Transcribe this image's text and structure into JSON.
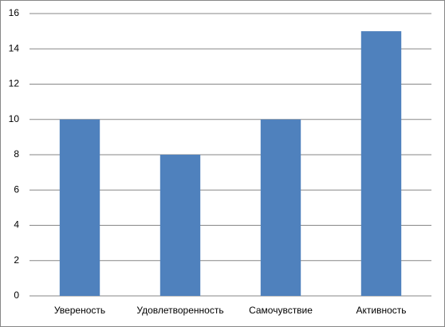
{
  "chart_data": {
    "type": "bar",
    "categories": [
      "Увереность",
      "Удовлетворенность",
      "Самочувствие",
      "Активность"
    ],
    "values": [
      10,
      8,
      10,
      15
    ],
    "color": "#4f81bd",
    "ylim": [
      0,
      16
    ],
    "yticks": [
      0,
      2,
      4,
      6,
      8,
      10,
      12,
      14,
      16
    ],
    "grid": true
  }
}
